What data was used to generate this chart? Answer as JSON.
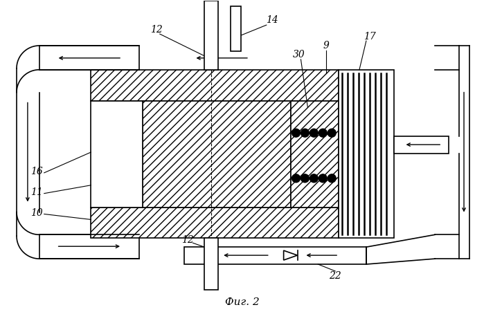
{
  "bg_color": "#ffffff",
  "title": "Фиг. 2",
  "labels": {
    "12_top": "12",
    "14": "14",
    "30": "30",
    "9": "9",
    "17": "17",
    "16": "16",
    "11": "11",
    "10": "10",
    "12_bot": "12",
    "22": "22"
  },
  "fig_width": 6.99,
  "fig_height": 4.54,
  "dpi": 100
}
